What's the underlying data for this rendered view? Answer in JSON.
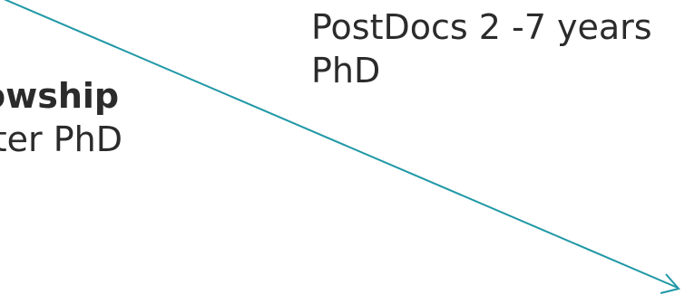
{
  "left_box": {
    "title": "owship",
    "subtitle": "fter PhD"
  },
  "right_box": {
    "line1": "PostDocs 2 -7 years",
    "line2": "PhD"
  },
  "arrow": {
    "color": "#1f98a6"
  }
}
